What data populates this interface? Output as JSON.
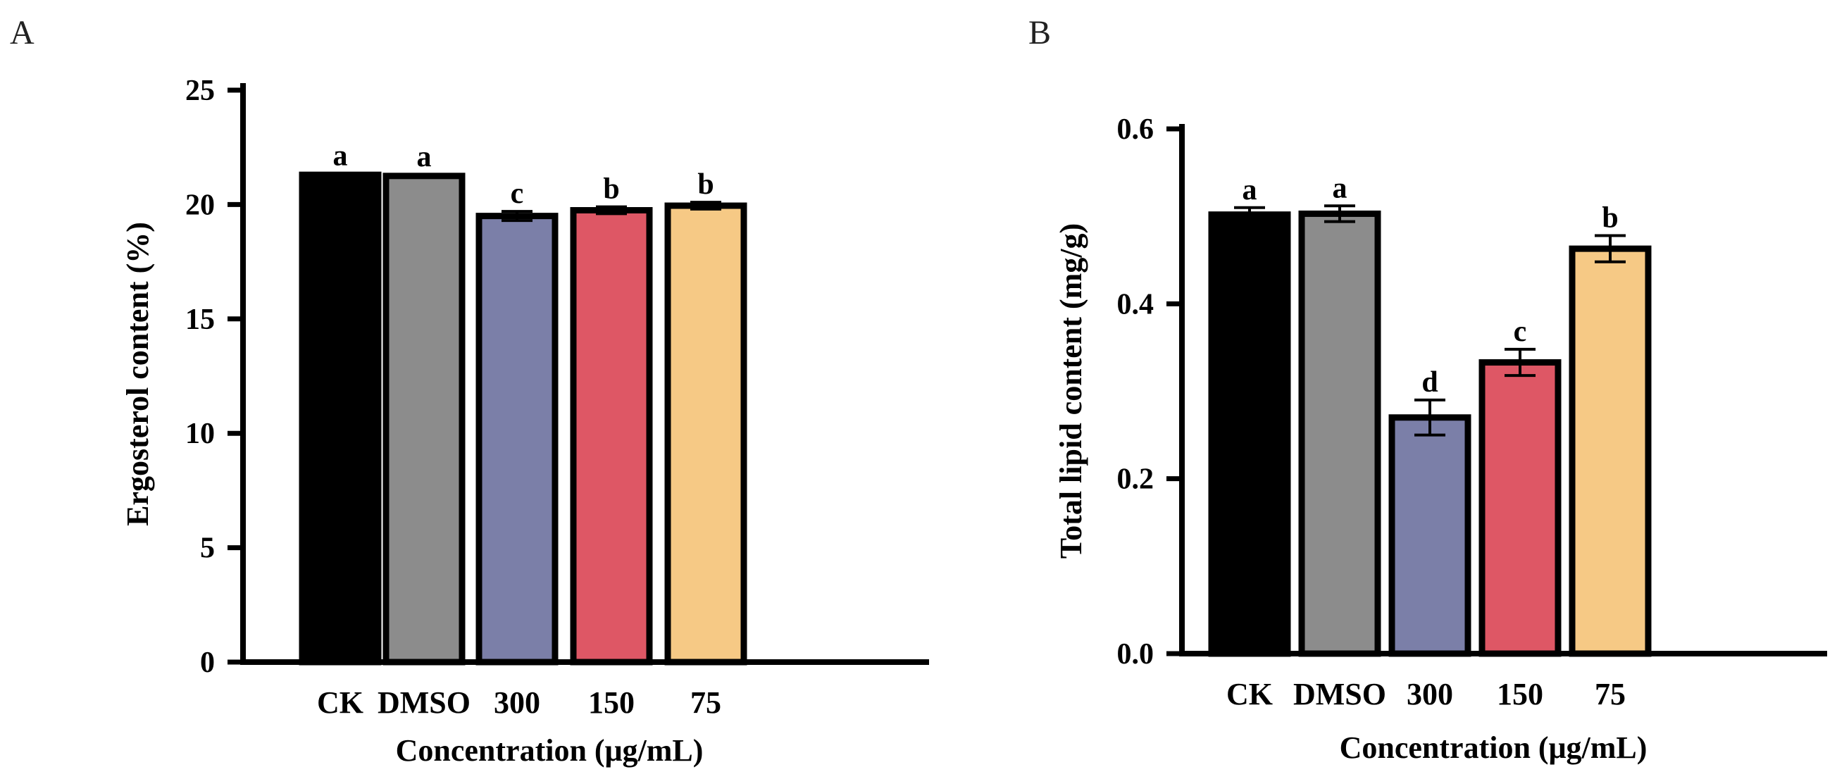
{
  "chart_data": [
    {
      "panel": "A",
      "type": "bar",
      "categories": [
        "CK",
        "DMSO",
        "300",
        "150",
        "75"
      ],
      "values": [
        21.3,
        21.25,
        19.5,
        19.75,
        19.95
      ],
      "errors": [
        0.05,
        0.05,
        0.2,
        0.15,
        0.15
      ],
      "significance": [
        "a",
        "a",
        "c",
        "b",
        "b"
      ],
      "colors": [
        "#000000",
        "#8c8c8c",
        "#7b7fa8",
        "#de5765",
        "#f6c985"
      ],
      "xlabel": "Concentration (μg/mL)",
      "ylabel": "Ergosterol content (%)",
      "ylim": [
        0,
        25
      ],
      "yticks": [
        "0",
        "5",
        "10",
        "15",
        "20",
        "25"
      ]
    },
    {
      "panel": "B",
      "type": "bar",
      "categories": [
        "CK",
        "DMSO",
        "300",
        "150",
        "75"
      ],
      "values": [
        0.502,
        0.503,
        0.27,
        0.333,
        0.463
      ],
      "errors": [
        0.008,
        0.009,
        0.02,
        0.015,
        0.015
      ],
      "significance": [
        "a",
        "a",
        "d",
        "c",
        "b"
      ],
      "colors": [
        "#000000",
        "#8c8c8c",
        "#7b7fa8",
        "#de5765",
        "#f6c985"
      ],
      "xlabel": "Concentration (μg/mL)",
      "ylabel": "Total lipid content (mg/g)",
      "ylim": [
        0,
        0.6
      ],
      "yticks": [
        "0.0",
        "0.2",
        "0.4",
        "0.6"
      ]
    }
  ]
}
